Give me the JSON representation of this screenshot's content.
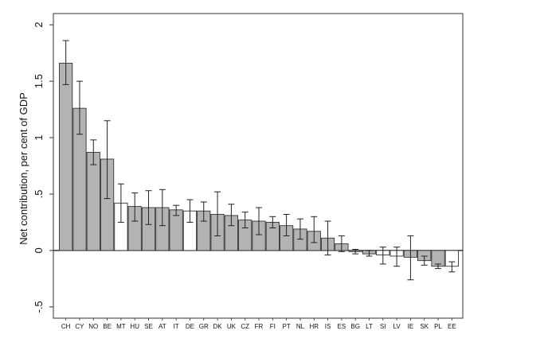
{
  "chart_data": {
    "type": "bar",
    "ylabel": "Net contribution, per cent of GDP",
    "xlabel": "",
    "ylim": [
      -0.6,
      2.1
    ],
    "yticks": [
      2,
      1.5,
      1,
      0.5,
      0,
      -0.5
    ],
    "ytick_labels": [
      "2",
      "1.5",
      "1",
      ".5",
      "0",
      "-.5"
    ],
    "grid": false,
    "categories": [
      "CH",
      "CY",
      "NO",
      "BE",
      "MT",
      "HU",
      "SE",
      "AT",
      "IT",
      "DE",
      "GR",
      "DK",
      "UK",
      "CZ",
      "FR",
      "FI",
      "PT",
      "NL",
      "HR",
      "IS",
      "ES",
      "BG",
      "LT",
      "SI",
      "LV",
      "IE",
      "SK",
      "PL",
      "EE"
    ],
    "values": [
      1.66,
      1.26,
      0.87,
      0.81,
      0.42,
      0.39,
      0.38,
      0.38,
      0.36,
      0.35,
      0.35,
      0.32,
      0.31,
      0.27,
      0.26,
      0.25,
      0.22,
      0.19,
      0.17,
      0.11,
      0.06,
      -0.01,
      -0.03,
      -0.04,
      -0.05,
      -0.06,
      -0.09,
      -0.14,
      -0.14
    ],
    "error_low": [
      1.47,
      1.03,
      0.76,
      0.46,
      0.25,
      0.26,
      0.23,
      0.22,
      0.31,
      0.25,
      0.26,
      0.13,
      0.22,
      0.2,
      0.14,
      0.2,
      0.13,
      0.1,
      0.07,
      -0.04,
      -0.01,
      -0.03,
      -0.05,
      -0.12,
      -0.14,
      -0.26,
      -0.13,
      -0.16,
      -0.19
    ],
    "error_high": [
      1.86,
      1.5,
      0.98,
      1.15,
      0.59,
      0.51,
      0.53,
      0.54,
      0.4,
      0.45,
      0.43,
      0.52,
      0.41,
      0.34,
      0.38,
      0.3,
      0.32,
      0.28,
      0.3,
      0.26,
      0.13,
      0.01,
      0.0,
      0.03,
      0.03,
      0.13,
      -0.05,
      -0.12,
      -0.1
    ],
    "bar_fills": [
      "gray",
      "gray",
      "gray",
      "gray",
      "white",
      "gray",
      "gray",
      "gray",
      "gray",
      "white",
      "gray",
      "gray",
      "gray",
      "gray",
      "gray",
      "gray",
      "gray",
      "gray",
      "gray",
      "gray",
      "gray",
      "gray",
      "gray",
      "white",
      "white",
      "gray",
      "gray",
      "gray",
      "white"
    ],
    "colors": {
      "gray": "#b3b3b3",
      "white": "#ffffff",
      "outline": "#333333",
      "error": "#222222"
    }
  }
}
